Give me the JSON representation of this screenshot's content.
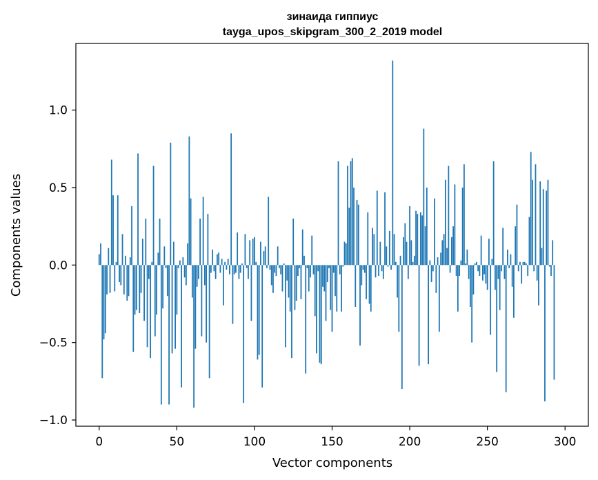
{
  "chart_data": {
    "type": "bar",
    "title_line1": "зинаида гиппиус",
    "title_line2": "tayga_upos_skipgram_300_2_2019 model",
    "xlabel": "Vector components",
    "ylabel": "Components values",
    "xlim": [
      -15,
      315
    ],
    "ylim": [
      -1.04,
      1.43
    ],
    "xticks": [
      0,
      50,
      100,
      150,
      200,
      250,
      300
    ],
    "xtick_labels": [
      "0",
      "50",
      "100",
      "150",
      "200",
      "250",
      "300"
    ],
    "yticks": [
      -1.0,
      -0.5,
      0.0,
      0.5,
      1.0
    ],
    "ytick_labels": [
      "−1.0",
      "−0.5",
      "0.0",
      "0.5",
      "1.0"
    ],
    "grid": false,
    "bar_color": "#1f77b4",
    "values": [
      0.07,
      0.14,
      -0.73,
      -0.48,
      -0.44,
      -0.19,
      0.11,
      -0.18,
      0.68,
      0.45,
      -0.17,
      0.02,
      0.45,
      -0.11,
      -0.13,
      0.2,
      -0.19,
      0.06,
      -0.23,
      -0.2,
      0.05,
      0.38,
      -0.56,
      -0.32,
      -0.29,
      0.72,
      -0.31,
      -0.18,
      0.17,
      -0.36,
      0.3,
      -0.53,
      -0.09,
      -0.6,
      0.02,
      0.64,
      -0.46,
      -0.32,
      0.08,
      0.3,
      -0.9,
      -0.28,
      0.12,
      -0.02,
      -0.2,
      -0.9,
      0.79,
      -0.57,
      0.15,
      -0.54,
      -0.32,
      -0.02,
      0.03,
      -0.79,
      0.05,
      -0.08,
      -0.13,
      0.14,
      0.83,
      0.43,
      -0.21,
      -0.92,
      -0.54,
      -0.14,
      -0.09,
      0.3,
      -0.46,
      0.44,
      -0.13,
      -0.5,
      0.33,
      -0.73,
      -0.05,
      0.1,
      -0.04,
      -0.09,
      0.07,
      0.08,
      -0.05,
      0.04,
      -0.26,
      0.02,
      -0.03,
      0.04,
      -0.06,
      0.85,
      -0.38,
      -0.06,
      -0.05,
      0.21,
      -0.09,
      -0.05,
      0.01,
      -0.89,
      0.2,
      -0.02,
      -0.09,
      0.16,
      -0.36,
      0.17,
      0.18,
      0.02,
      -0.61,
      -0.58,
      0.15,
      -0.79,
      0.09,
      0.12,
      -0.02,
      0.44,
      -0.03,
      -0.13,
      -0.18,
      -0.05,
      -0.07,
      0.12,
      -0.02,
      -0.06,
      -0.17,
      0.01,
      -0.53,
      -0.1,
      -0.21,
      -0.3,
      -0.6,
      0.3,
      -0.29,
      -0.23,
      -0.07,
      -0.02,
      -0.22,
      0.23,
      0.06,
      -0.7,
      -0.02,
      -0.17,
      -0.08,
      0.19,
      -0.06,
      -0.33,
      -0.57,
      -0.04,
      -0.63,
      -0.64,
      -0.14,
      -0.17,
      -0.36,
      -0.11,
      -0.02,
      -0.29,
      -0.43,
      -0.05,
      -0.2,
      -0.3,
      0.67,
      -0.06,
      -0.3,
      -0.01,
      0.15,
      0.14,
      0.64,
      0.37,
      0.67,
      0.69,
      0.5,
      -0.27,
      0.42,
      0.39,
      -0.52,
      -0.13,
      -0.03,
      -0.05,
      -0.22,
      0.34,
      -0.25,
      -0.3,
      0.24,
      0.2,
      -0.08,
      0.48,
      -0.07,
      0.15,
      -0.04,
      -0.09,
      0.47,
      0.12,
      -0.01,
      0.22,
      -0.03,
      1.32,
      0.2,
      0.02,
      -0.21,
      -0.43,
      0.06,
      -0.8,
      0.18,
      0.27,
      0.15,
      -0.09,
      0.38,
      0.16,
      0.02,
      0.06,
      0.35,
      0.33,
      -0.65,
      0.34,
      0.32,
      0.88,
      0.25,
      0.5,
      -0.64,
      0.03,
      -0.11,
      -0.04,
      0.43,
      -0.18,
      0.05,
      -0.43,
      0.08,
      0.16,
      0.2,
      0.55,
      0.11,
      0.64,
      -0.05,
      0.18,
      0.25,
      0.52,
      -0.07,
      -0.3,
      -0.07,
      0.03,
      0.5,
      0.65,
      0.01,
      0.1,
      -0.09,
      -0.27,
      -0.5,
      -0.19,
      0.01,
      0.02,
      -0.04,
      -0.07,
      0.19,
      -0.1,
      -0.06,
      -0.12,
      -0.16,
      0.17,
      -0.45,
      0.04,
      0.67,
      -0.16,
      -0.69,
      -0.09,
      -0.29,
      -0.04,
      0.24,
      -0.09,
      -0.82,
      0.1,
      -0.02,
      0.07,
      -0.14,
      -0.34,
      0.25,
      0.39,
      -0.04,
      0.02,
      -0.12,
      0.02,
      0.02,
      0.01,
      -0.07,
      0.31,
      0.73,
      0.55,
      -0.04,
      0.65,
      -0.1,
      -0.26,
      0.54,
      0.11,
      0.49,
      -0.88,
      0.48,
      0.55,
      -0.01,
      -0.07,
      0.16,
      -0.74
    ]
  }
}
